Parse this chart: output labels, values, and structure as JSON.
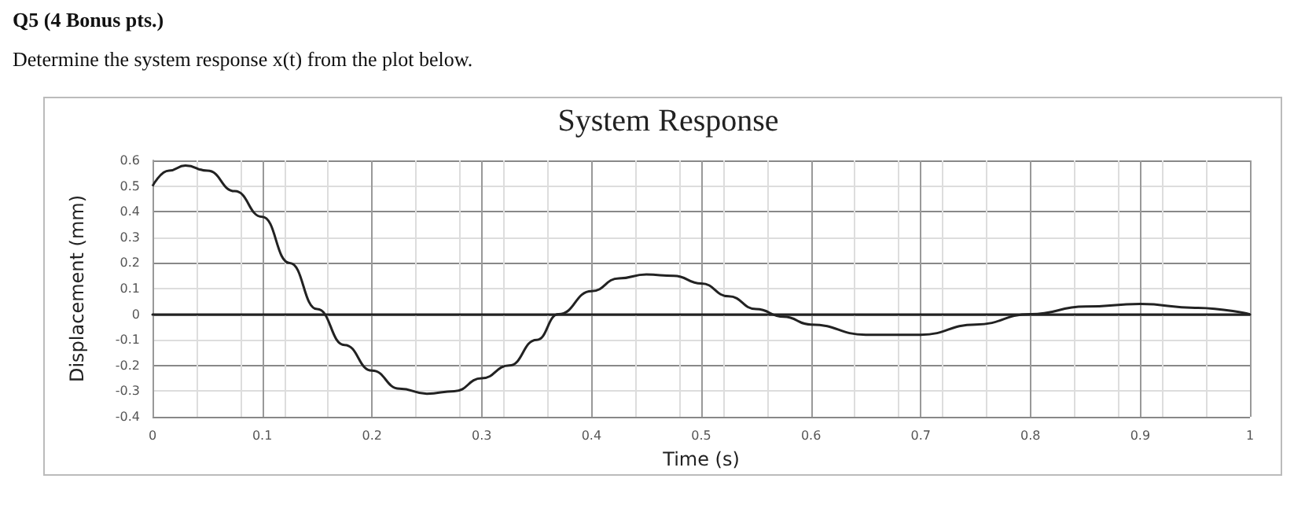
{
  "chart_data": {
    "type": "line",
    "title": "System Response",
    "xlabel": "Time (s)",
    "ylabel": "Displacement (mm)",
    "annotations": [
      "Q5 (4 Bonus pts.)",
      "Determine the system response x(t) from the plot below."
    ],
    "x": [
      0,
      0.015,
      0.03,
      0.05,
      0.075,
      0.1,
      0.125,
      0.15,
      0.175,
      0.2,
      0.225,
      0.25,
      0.275,
      0.3,
      0.325,
      0.35,
      0.37,
      0.4,
      0.425,
      0.45,
      0.475,
      0.5,
      0.525,
      0.55,
      0.575,
      0.6,
      0.65,
      0.7,
      0.75,
      0.8,
      0.85,
      0.9,
      0.95,
      1
    ],
    "series": [
      {
        "color": "#222222",
        "values": [
          0.5,
          0.56,
          0.58,
          0.56,
          0.48,
          0.38,
          0.2,
          0.02,
          -0.12,
          -0.22,
          -0.29,
          -0.31,
          -0.3,
          -0.25,
          -0.2,
          -0.1,
          0,
          0.09,
          0.14,
          0.155,
          0.15,
          0.12,
          0.07,
          0.02,
          -0.01,
          -0.04,
          -0.08,
          -0.08,
          -0.04,
          0,
          0.03,
          0.04,
          0.025,
          0
        ]
      }
    ],
    "xlim": [
      0,
      1
    ],
    "xticks": [
      0,
      0.1,
      0.2,
      0.3,
      0.4,
      0.5,
      0.6,
      0.7,
      0.8,
      0.9,
      1
    ],
    "ylim": [
      -0.4,
      0.6
    ],
    "yticks": [
      -0.4,
      -0.3,
      -0.2,
      -0.1,
      0,
      0.1,
      0.2,
      0.3,
      0.4,
      0.5,
      0.6
    ],
    "grid": true,
    "marker": "none",
    "line_style": "solid"
  }
}
